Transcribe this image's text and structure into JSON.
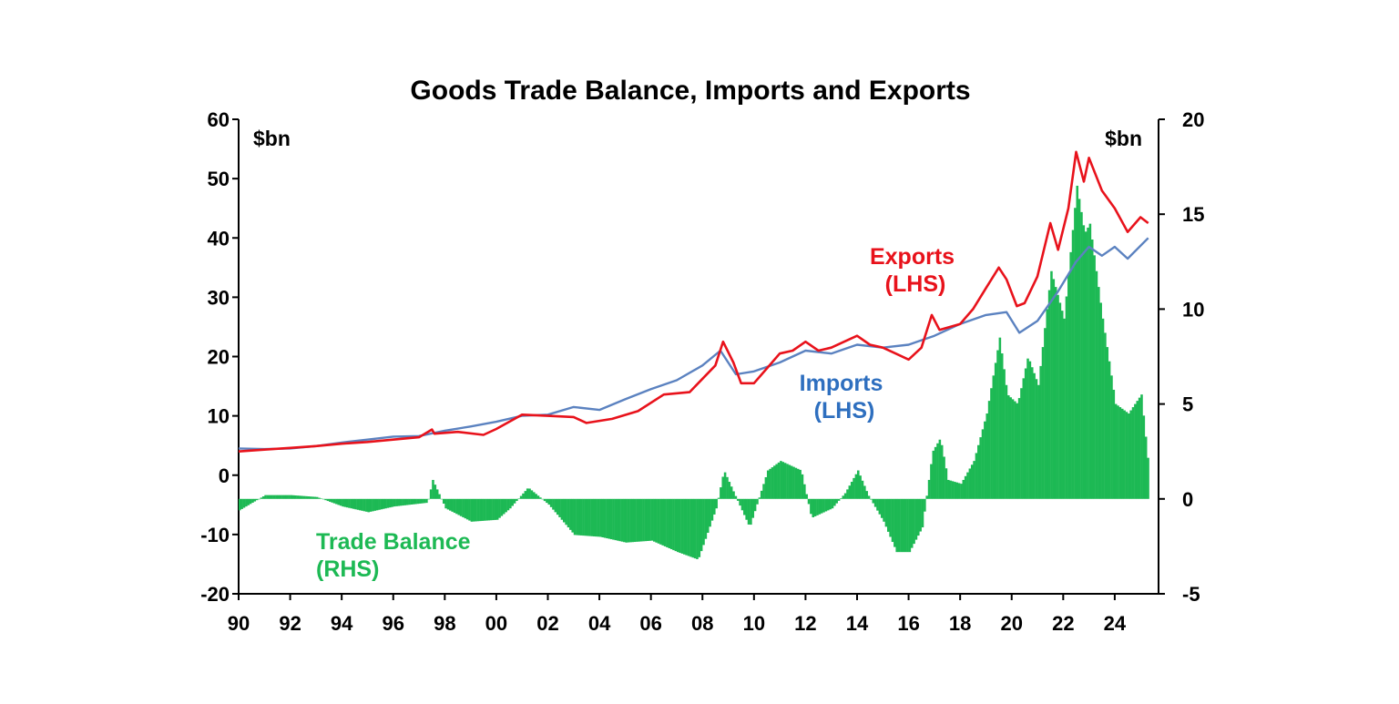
{
  "chart_data": {
    "type": "line",
    "title": "Goods Trade Balance, Imports and Exports",
    "left_unit": "$bn",
    "right_unit": "$bn",
    "left_axis": {
      "min": -20,
      "max": 60,
      "ticks": [
        "60",
        "50",
        "40",
        "30",
        "20",
        "10",
        "0",
        "-10",
        "-20"
      ]
    },
    "right_axis": {
      "min": -5,
      "max": 20,
      "ticks": [
        "20",
        "15",
        "10",
        "5",
        "0",
        "-5"
      ]
    },
    "x_axis": {
      "min": 1990,
      "max": 2025.7,
      "ticks": [
        "90",
        "92",
        "94",
        "96",
        "98",
        "00",
        "02",
        "04",
        "06",
        "08",
        "10",
        "12",
        "14",
        "16",
        "18",
        "20",
        "22",
        "24"
      ]
    },
    "colors": {
      "exports": "#e8121b",
      "imports": "#5b82c0",
      "balance": "#1db954",
      "exports_label": "#e8121b",
      "imports_label": "#2e6fbf",
      "balance_label": "#1db954"
    },
    "series": [
      {
        "name": "Exports",
        "axis": "left",
        "label_lines": [
          "Exports",
          "(LHS)"
        ],
        "points": [
          [
            1990.0,
            4.0
          ],
          [
            1991.0,
            4.3
          ],
          [
            1992.0,
            4.6
          ],
          [
            1993.0,
            4.9
          ],
          [
            1994.0,
            5.3
          ],
          [
            1995.0,
            5.6
          ],
          [
            1996.0,
            6.0
          ],
          [
            1997.0,
            6.4
          ],
          [
            1997.5,
            7.7
          ],
          [
            1997.6,
            7.0
          ],
          [
            1998.5,
            7.3
          ],
          [
            1999.5,
            6.8
          ],
          [
            2000.0,
            7.8
          ],
          [
            2000.5,
            9.0
          ],
          [
            2001.0,
            10.2
          ],
          [
            2002.0,
            10.0
          ],
          [
            2003.0,
            9.8
          ],
          [
            2003.5,
            8.8
          ],
          [
            2004.5,
            9.5
          ],
          [
            2005.5,
            10.8
          ],
          [
            2006.5,
            13.6
          ],
          [
            2007.5,
            14.0
          ],
          [
            2008.5,
            18.5
          ],
          [
            2008.8,
            22.5
          ],
          [
            2009.2,
            19.0
          ],
          [
            2009.5,
            15.5
          ],
          [
            2010.0,
            15.5
          ],
          [
            2010.5,
            18.0
          ],
          [
            2011.0,
            20.5
          ],
          [
            2011.5,
            21.0
          ],
          [
            2012.0,
            22.5
          ],
          [
            2012.5,
            21.0
          ],
          [
            2013.0,
            21.5
          ],
          [
            2013.5,
            22.5
          ],
          [
            2014.0,
            23.5
          ],
          [
            2014.5,
            22.0
          ],
          [
            2015.0,
            21.5
          ],
          [
            2015.5,
            20.5
          ],
          [
            2016.0,
            19.5
          ],
          [
            2016.5,
            21.5
          ],
          [
            2016.9,
            27.0
          ],
          [
            2017.2,
            24.5
          ],
          [
            2018.0,
            25.5
          ],
          [
            2018.5,
            28.0
          ],
          [
            2019.0,
            31.5
          ],
          [
            2019.5,
            35.0
          ],
          [
            2019.8,
            33.0
          ],
          [
            2020.2,
            28.5
          ],
          [
            2020.5,
            29.0
          ],
          [
            2021.0,
            33.5
          ],
          [
            2021.5,
            42.5
          ],
          [
            2021.8,
            38.0
          ],
          [
            2022.2,
            45.0
          ],
          [
            2022.5,
            54.5
          ],
          [
            2022.8,
            49.5
          ],
          [
            2023.0,
            53.5
          ],
          [
            2023.5,
            48.0
          ],
          [
            2024.0,
            45.0
          ],
          [
            2024.5,
            41.0
          ],
          [
            2025.0,
            43.5
          ],
          [
            2025.3,
            42.5
          ]
        ]
      },
      {
        "name": "Imports",
        "axis": "left",
        "label_lines": [
          "Imports",
          "(LHS)"
        ],
        "points": [
          [
            1990.0,
            4.5
          ],
          [
            1991.0,
            4.4
          ],
          [
            1992.0,
            4.5
          ],
          [
            1993.0,
            4.9
          ],
          [
            1994.0,
            5.5
          ],
          [
            1995.0,
            6.0
          ],
          [
            1996.0,
            6.5
          ],
          [
            1997.0,
            6.6
          ],
          [
            1998.0,
            7.5
          ],
          [
            1999.0,
            8.2
          ],
          [
            2000.0,
            9.0
          ],
          [
            2001.0,
            10.0
          ],
          [
            2002.0,
            10.2
          ],
          [
            2003.0,
            11.5
          ],
          [
            2004.0,
            11.0
          ],
          [
            2005.0,
            12.8
          ],
          [
            2006.0,
            14.5
          ],
          [
            2007.0,
            16.0
          ],
          [
            2008.0,
            18.5
          ],
          [
            2008.7,
            21.0
          ],
          [
            2009.3,
            17.0
          ],
          [
            2010.0,
            17.5
          ],
          [
            2011.0,
            19.0
          ],
          [
            2012.0,
            21.0
          ],
          [
            2013.0,
            20.5
          ],
          [
            2014.0,
            22.0
          ],
          [
            2015.0,
            21.5
          ],
          [
            2016.0,
            22.0
          ],
          [
            2017.0,
            23.5
          ],
          [
            2018.0,
            25.5
          ],
          [
            2019.0,
            27.0
          ],
          [
            2019.8,
            27.5
          ],
          [
            2020.3,
            24.0
          ],
          [
            2021.0,
            26.0
          ],
          [
            2021.8,
            31.0
          ],
          [
            2022.5,
            36.0
          ],
          [
            2023.0,
            38.5
          ],
          [
            2023.5,
            37.0
          ],
          [
            2024.0,
            38.5
          ],
          [
            2024.5,
            36.5
          ],
          [
            2025.3,
            40.0
          ]
        ]
      },
      {
        "name": "Trade Balance",
        "axis": "right",
        "type": "bar",
        "label_lines": [
          "Trade Balance",
          "(RHS)"
        ],
        "points": [
          [
            1990.0,
            -0.6
          ],
          [
            1991.0,
            0.2
          ],
          [
            1992.0,
            0.2
          ],
          [
            1993.0,
            0.1
          ],
          [
            1994.0,
            -0.4
          ],
          [
            1995.0,
            -0.7
          ],
          [
            1996.0,
            -0.4
          ],
          [
            1997.3,
            -0.2
          ],
          [
            1997.5,
            1.0
          ],
          [
            1998.0,
            -0.5
          ],
          [
            1999.0,
            -1.2
          ],
          [
            2000.0,
            -1.1
          ],
          [
            2000.5,
            -0.5
          ],
          [
            2001.2,
            0.6
          ],
          [
            2002.0,
            -0.3
          ],
          [
            2003.0,
            -1.9
          ],
          [
            2004.0,
            -2.0
          ],
          [
            2005.0,
            -2.3
          ],
          [
            2006.0,
            -2.2
          ],
          [
            2007.0,
            -2.8
          ],
          [
            2007.8,
            -3.2
          ],
          [
            2008.5,
            -0.5
          ],
          [
            2008.8,
            1.5
          ],
          [
            2009.2,
            0.3
          ],
          [
            2009.8,
            -1.5
          ],
          [
            2010.5,
            1.5
          ],
          [
            2011.0,
            2.0
          ],
          [
            2011.8,
            1.5
          ],
          [
            2012.2,
            -1.0
          ],
          [
            2013.0,
            -0.5
          ],
          [
            2013.5,
            0.3
          ],
          [
            2014.0,
            1.5
          ],
          [
            2014.4,
            0.2
          ],
          [
            2015.0,
            -1.2
          ],
          [
            2015.5,
            -2.8
          ],
          [
            2016.0,
            -2.8
          ],
          [
            2016.5,
            -1.5
          ],
          [
            2016.9,
            2.5
          ],
          [
            2017.2,
            3.2
          ],
          [
            2017.5,
            1.0
          ],
          [
            2018.0,
            0.8
          ],
          [
            2018.5,
            2.0
          ],
          [
            2019.0,
            4.5
          ],
          [
            2019.5,
            8.5
          ],
          [
            2019.8,
            5.5
          ],
          [
            2020.2,
            5.0
          ],
          [
            2020.6,
            7.5
          ],
          [
            2021.0,
            6.0
          ],
          [
            2021.5,
            12.0
          ],
          [
            2022.0,
            9.5
          ],
          [
            2022.5,
            16.5
          ],
          [
            2022.8,
            14.0
          ],
          [
            2023.0,
            14.5
          ],
          [
            2023.5,
            9.5
          ],
          [
            2024.0,
            5.0
          ],
          [
            2024.5,
            4.5
          ],
          [
            2025.0,
            5.5
          ],
          [
            2025.3,
            1.5
          ]
        ]
      }
    ]
  }
}
